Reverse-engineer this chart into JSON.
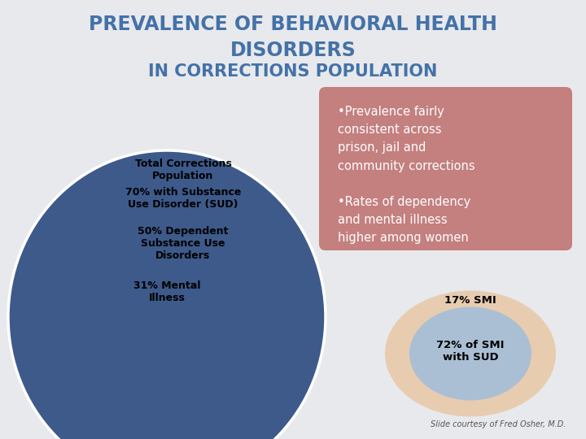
{
  "title_line1": "PREVALENCE OF BEHAVIORAL HEALTH",
  "title_line2": "DISORDERS",
  "title_line3": "IN CORRECTIONS POPULATION",
  "title_color": "#4472a8",
  "bg_color": "#e8e9ec",
  "ellipse_colors": [
    "#3d5a8a",
    "#2e8fc4",
    "#5bc0e0",
    "#a0bcd8"
  ],
  "ellipse_edge_color": "white",
  "label1": "Total Corrections\nPopulation",
  "label2": "70% with Substance\nUse Disorder (SUD)",
  "label3": "50% Dependent\nSubstance Use\nDisorders",
  "label4": "31% Mental\nIllness",
  "box1_text": "•Prevalence fairly\nconsistent across\nprison, jail and\ncommunity corrections\n\n•Rates of dependency\nand mental illness\nhigher among women",
  "box1_bg": "#c47f7f",
  "box1_text_color": "white",
  "smi_outer_color": "#e8ccb0",
  "smi_inner_color": "#aabfd4",
  "smi_label_outer": "17% SMI",
  "smi_label_inner": "72% of SMI\nwith SUD",
  "footer": "Slide courtesy of Fred Osher, M.D."
}
